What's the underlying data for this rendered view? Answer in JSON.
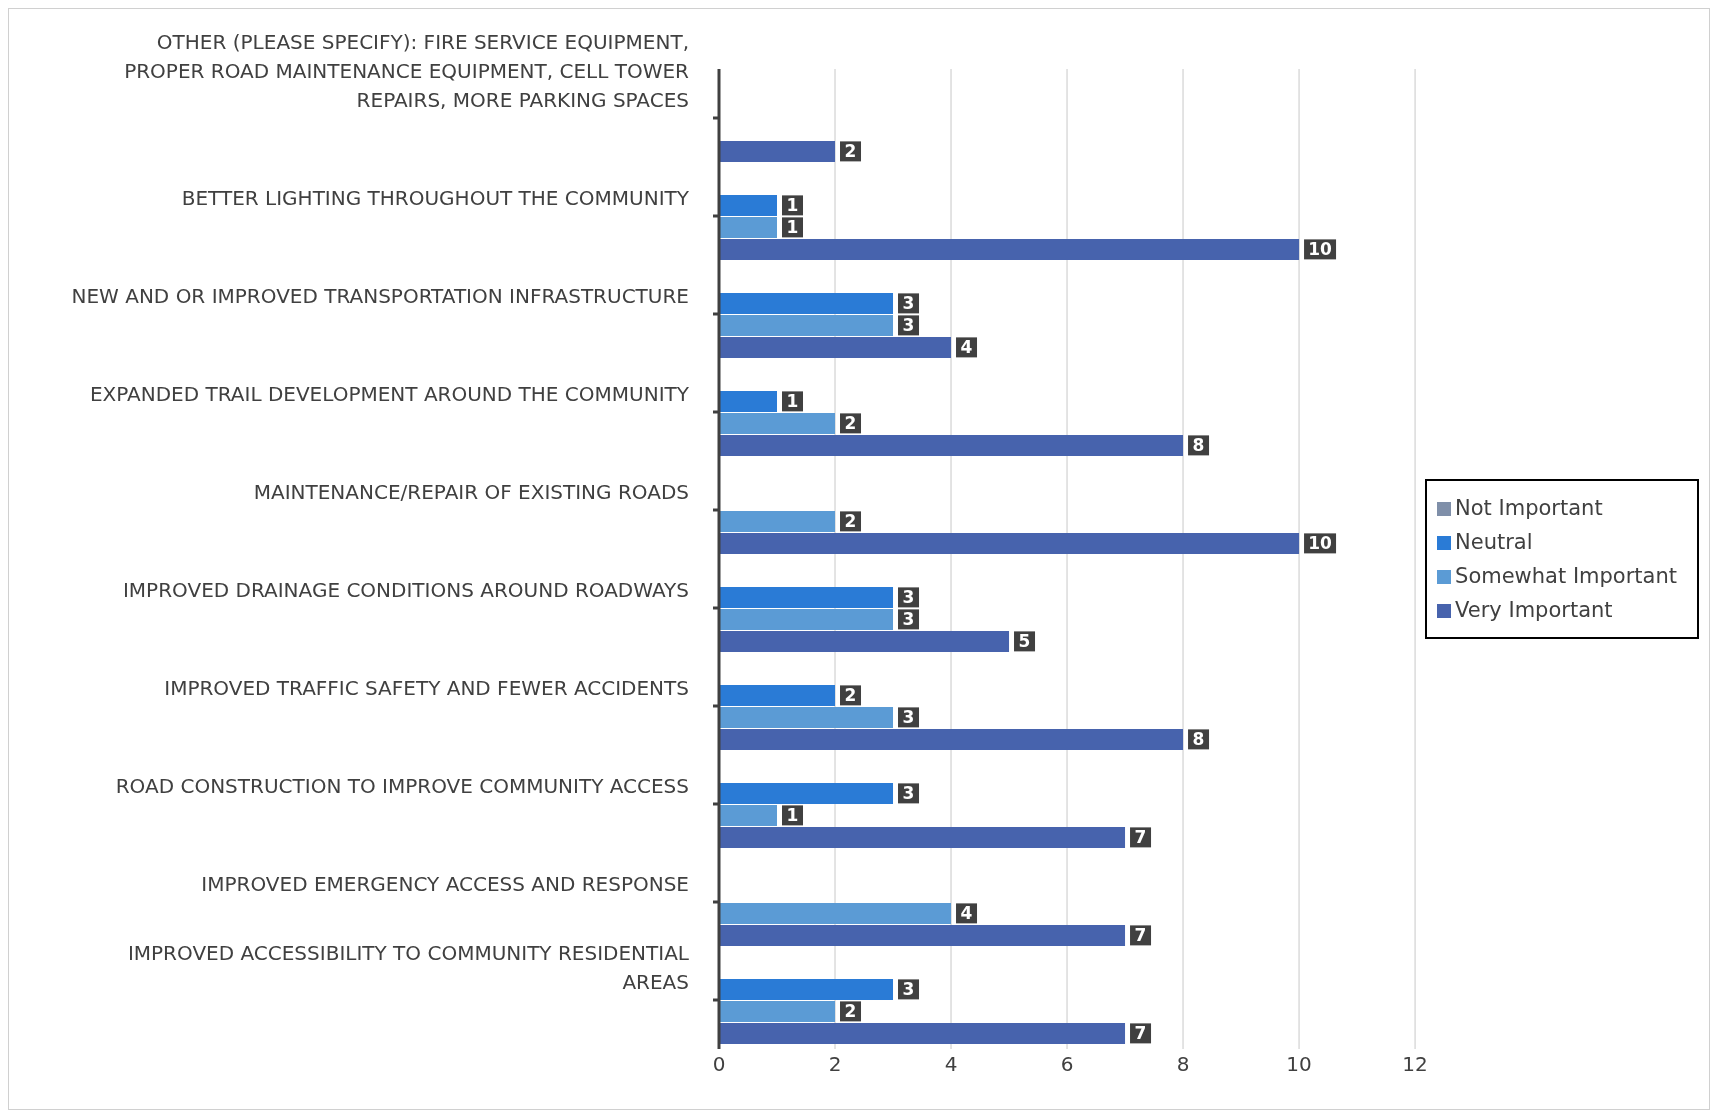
{
  "chart_data": {
    "type": "bar",
    "orientation": "horizontal",
    "categories": [
      "OTHER (PLEASE SPECIFY): FIRE SERVICE EQUIPMENT, PROPER ROAD MAINTENANCE EQUIPMENT, CELL TOWER REPAIRS, MORE PARKING SPACES",
      "BETTER LIGHTING THROUGHOUT THE COMMUNITY",
      "NEW AND OR IMPROVED TRANSPORTATION INFRASTRUCTURE",
      "EXPANDED TRAIL DEVELOPMENT AROUND THE COMMUNITY",
      "MAINTENANCE/REPAIR OF EXISTING ROADS",
      "IMPROVED DRAINAGE CONDITIONS AROUND ROADWAYS",
      "IMPROVED TRAFFIC SAFETY AND FEWER ACCIDENTS",
      "ROAD CONSTRUCTION TO IMPROVE COMMUNITY ACCESS",
      "IMPROVED EMERGENCY ACCESS AND RESPONSE",
      "IMPROVED ACCESSIBILITY TO COMMUNITY RESIDENTIAL AREAS"
    ],
    "series": [
      {
        "name": "Not Important",
        "color": "#7f8fa9",
        "values": [
          null,
          null,
          null,
          null,
          null,
          null,
          null,
          null,
          null,
          null
        ]
      },
      {
        "name": "Neutral",
        "color": "#2a7bd6",
        "values": [
          null,
          1,
          3,
          1,
          null,
          3,
          2,
          3,
          null,
          3
        ]
      },
      {
        "name": "Somewhat Important",
        "color": "#5b9bd5",
        "values": [
          null,
          1,
          3,
          2,
          2,
          3,
          3,
          1,
          4,
          2
        ]
      },
      {
        "name": "Very Important",
        "color": "#4763ad",
        "values": [
          2,
          10,
          4,
          8,
          10,
          5,
          8,
          7,
          7,
          7
        ]
      }
    ],
    "xlim": [
      0,
      12
    ],
    "xticks": [
      0,
      2,
      4,
      6,
      8,
      10,
      12
    ],
    "grid": "x",
    "legend": "right",
    "data_labels": true
  }
}
